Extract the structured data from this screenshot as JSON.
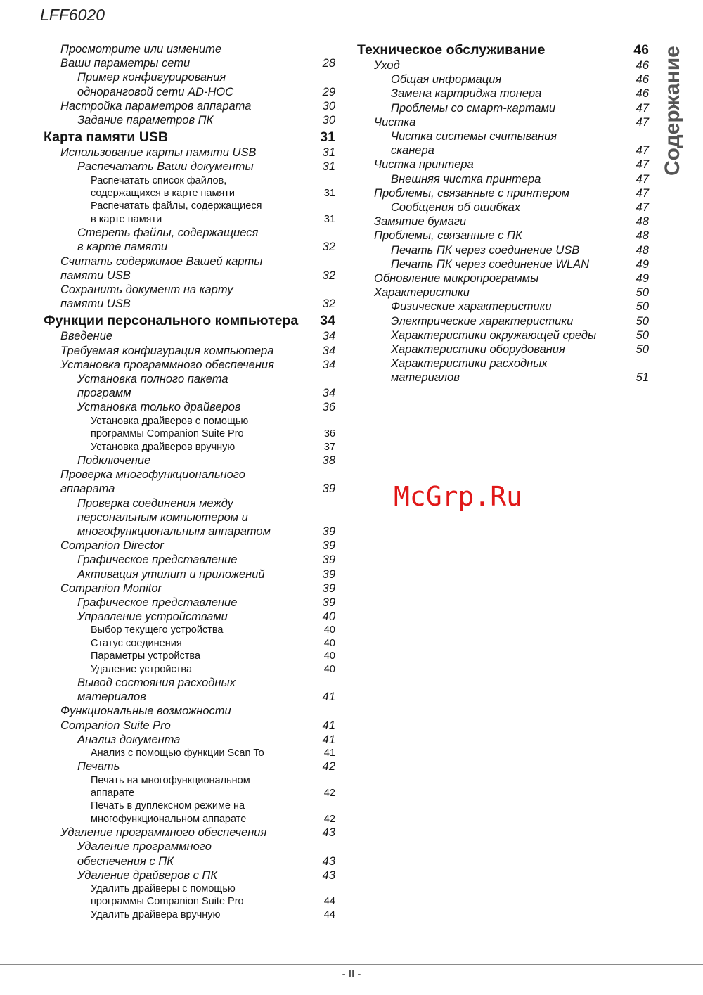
{
  "header": {
    "title": "LFF6020"
  },
  "side_tab": "Содержание",
  "watermark": "McGrp.Ru",
  "footer": {
    "page": "- II -"
  },
  "toc": {
    "left": [
      {
        "level": 1,
        "lines": [
          "Просмотрите или измените",
          "Ваши параметры сети"
        ],
        "page": "28"
      },
      {
        "level": 2,
        "lines": [
          "Пример конфигурирования",
          "одноранговой сети AD-HOC"
        ],
        "page": "29"
      },
      {
        "level": 1,
        "lines": [
          "Настройка параметров аппарата"
        ],
        "page": "30"
      },
      {
        "level": 2,
        "lines": [
          "Задание параметров ПК"
        ],
        "page": "30"
      },
      {
        "level": 0,
        "lines": [
          "Карта памяти USB"
        ],
        "page": "31"
      },
      {
        "level": 1,
        "lines": [
          "Использование карты памяти USB"
        ],
        "page": "31"
      },
      {
        "level": 2,
        "lines": [
          "Распечатать Ваши документы"
        ],
        "page": "31"
      },
      {
        "level": 3,
        "lines": [
          "Распечатать список файлов,",
          "содержащихся в карте памяти"
        ],
        "page": "31"
      },
      {
        "level": 3,
        "lines": [
          "Распечатать файлы, содержащиеся",
          "в карте памяти"
        ],
        "page": "31"
      },
      {
        "level": 2,
        "lines": [
          "Стереть файлы, содержащиеся",
          "в карте памяти"
        ],
        "page": "32"
      },
      {
        "level": 1,
        "lines": [
          "Считать содержимое Вашей карты",
          "памяти USB"
        ],
        "page": "32"
      },
      {
        "level": 1,
        "lines": [
          "Сохранить документ на карту",
          "памяти USB"
        ],
        "page": "32"
      },
      {
        "level": 0,
        "lines": [
          "Функции персонального компьютера"
        ],
        "page": "34"
      },
      {
        "level": 1,
        "lines": [
          "Введение"
        ],
        "page": "34"
      },
      {
        "level": 1,
        "lines": [
          "Требуемая конфигурация компьютера"
        ],
        "page": "34"
      },
      {
        "level": 1,
        "lines": [
          "Установка программного обеспечения"
        ],
        "page": "34"
      },
      {
        "level": 2,
        "lines": [
          "Установка полного пакета",
          "программ"
        ],
        "page": "34"
      },
      {
        "level": 2,
        "lines": [
          "Установка только драйверов"
        ],
        "page": "36"
      },
      {
        "level": 3,
        "lines": [
          "Установка драйверов с помощью",
          "программы Companion Suite Pro"
        ],
        "page": "36"
      },
      {
        "level": 3,
        "lines": [
          "Установка драйверов вручную"
        ],
        "page": "37"
      },
      {
        "level": 2,
        "lines": [
          "Подключение"
        ],
        "page": "38"
      },
      {
        "level": 1,
        "lines": [
          "Проверка многофункционального",
          "аппарата"
        ],
        "page": "39"
      },
      {
        "level": 2,
        "lines": [
          "Проверка соединения между",
          "персональным компьютером и",
          "многофункциональным аппаратом"
        ],
        "page": "39"
      },
      {
        "level": 1,
        "lines": [
          "Companion Director"
        ],
        "page": "39"
      },
      {
        "level": 2,
        "lines": [
          "Графическое представление"
        ],
        "page": "39"
      },
      {
        "level": 2,
        "lines": [
          "Активация утилит и приложений"
        ],
        "page": "39"
      },
      {
        "level": 1,
        "lines": [
          "Companion Monitor"
        ],
        "page": "39"
      },
      {
        "level": 2,
        "lines": [
          "Графическое представление"
        ],
        "page": "39"
      },
      {
        "level": 2,
        "lines": [
          "Управление устройствами"
        ],
        "page": "40"
      },
      {
        "level": 3,
        "lines": [
          "Выбор текущего устройства"
        ],
        "page": "40"
      },
      {
        "level": 3,
        "lines": [
          "Статус соединения"
        ],
        "page": "40"
      },
      {
        "level": 3,
        "lines": [
          "Параметры устройства"
        ],
        "page": "40"
      },
      {
        "level": 3,
        "lines": [
          "Удаление устройства"
        ],
        "page": "40"
      },
      {
        "level": 2,
        "lines": [
          "Вывод состояния расходных",
          "материалов"
        ],
        "page": "41"
      },
      {
        "level": 1,
        "lines": [
          "Функциональные возможности",
          "Companion Suite Pro"
        ],
        "page": "41"
      },
      {
        "level": 2,
        "lines": [
          "Анализ документа"
        ],
        "page": "41"
      },
      {
        "level": 3,
        "lines": [
          "Анализ с помощью функции Scan To"
        ],
        "page": "41"
      },
      {
        "level": 2,
        "lines": [
          "Печать"
        ],
        "page": "42"
      },
      {
        "level": 3,
        "lines": [
          "Печать на многофункциональном",
          "аппарате"
        ],
        "page": "42"
      },
      {
        "level": 3,
        "lines": [
          "Печать в дуплексном режиме на",
          "многофункциональном аппарате"
        ],
        "page": "42"
      },
      {
        "level": 1,
        "lines": [
          "Удаление программного обеспечения"
        ],
        "page": "43"
      },
      {
        "level": 2,
        "lines": [
          "Удаление программного",
          "обеспечения с ПК"
        ],
        "page": "43"
      },
      {
        "level": 2,
        "lines": [
          "Удаление драйверов с ПК"
        ],
        "page": "43"
      },
      {
        "level": 3,
        "lines": [
          "Удалить драйверы с помощью",
          "программы Companion Suite Pro"
        ],
        "page": "44"
      },
      {
        "level": 3,
        "lines": [
          "Удалить драйвера вручную"
        ],
        "page": "44"
      }
    ],
    "right": [
      {
        "level": 0,
        "lines": [
          "Техническое обслуживание"
        ],
        "page": "46"
      },
      {
        "level": 1,
        "lines": [
          "Уход"
        ],
        "page": "46"
      },
      {
        "level": 2,
        "lines": [
          "Общая информация"
        ],
        "page": "46"
      },
      {
        "level": 2,
        "lines": [
          "Замена картриджа тонера"
        ],
        "page": "46"
      },
      {
        "level": 2,
        "lines": [
          "Проблемы со смарт-картами"
        ],
        "page": "47"
      },
      {
        "level": 1,
        "lines": [
          "Чистка"
        ],
        "page": "47"
      },
      {
        "level": 2,
        "lines": [
          "Чистка системы считывания",
          "сканера"
        ],
        "page": "47"
      },
      {
        "level": 1,
        "lines": [
          "Чистка принтера"
        ],
        "page": "47"
      },
      {
        "level": 2,
        "lines": [
          "Внешняя чистка принтера"
        ],
        "page": "47"
      },
      {
        "level": 1,
        "lines": [
          "Проблемы, связанные с принтером"
        ],
        "page": "47"
      },
      {
        "level": 2,
        "lines": [
          "Сообщения об ошибках"
        ],
        "page": "47"
      },
      {
        "level": 1,
        "lines": [
          "Замятие бумаги"
        ],
        "page": "48"
      },
      {
        "level": 1,
        "lines": [
          "Проблемы, связанные с ПК"
        ],
        "page": "48"
      },
      {
        "level": 2,
        "lines": [
          "Печать ПК через соединение USB"
        ],
        "page": "48"
      },
      {
        "level": 2,
        "lines": [
          "Печать ПК через соединение WLAN"
        ],
        "page": "49"
      },
      {
        "level": 1,
        "lines": [
          "Обновление микропрограммы"
        ],
        "page": "49"
      },
      {
        "level": 1,
        "lines": [
          "Характеристики"
        ],
        "page": "50"
      },
      {
        "level": 2,
        "lines": [
          "Физические характеристики"
        ],
        "page": "50"
      },
      {
        "level": 2,
        "lines": [
          "Электрические характеристики"
        ],
        "page": "50"
      },
      {
        "level": 2,
        "lines": [
          "Характеристики окружающей среды"
        ],
        "page": "50"
      },
      {
        "level": 2,
        "lines": [
          "Характеристики оборудования"
        ],
        "page": "50"
      },
      {
        "level": 2,
        "lines": [
          "Характеристики расходных",
          "материалов"
        ],
        "page": "51"
      }
    ]
  }
}
